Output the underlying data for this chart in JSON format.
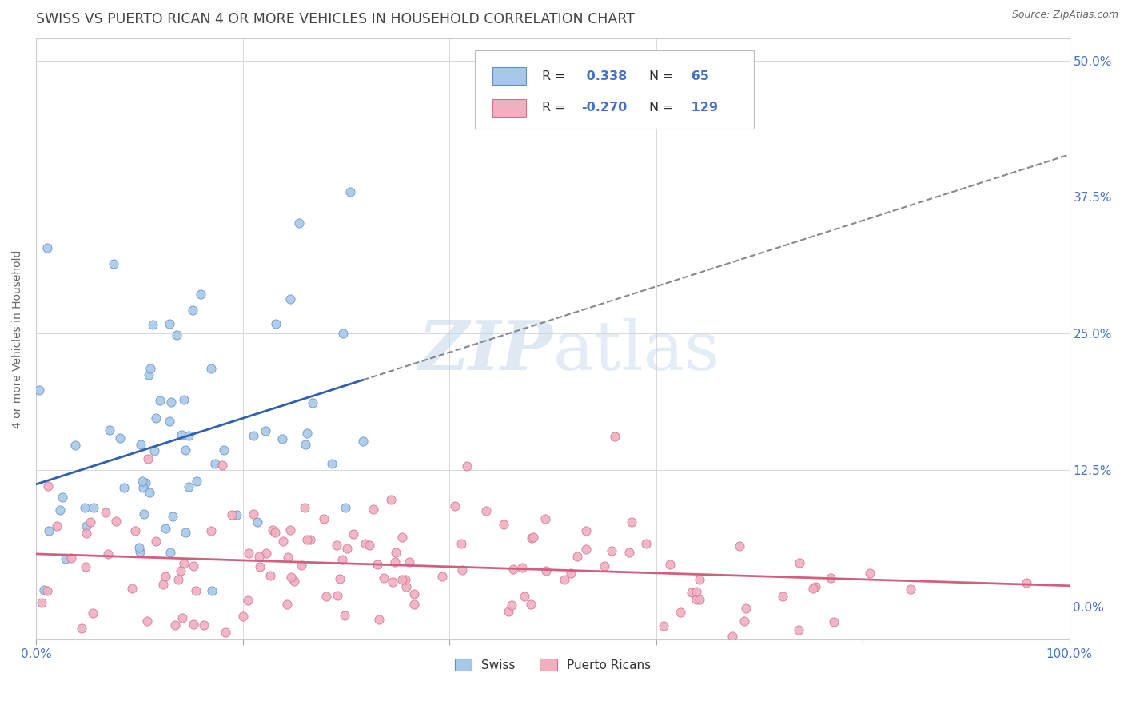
{
  "title": "SWISS VS PUERTO RICAN 4 OR MORE VEHICLES IN HOUSEHOLD CORRELATION CHART",
  "source": "Source: ZipAtlas.com",
  "ylabel": "4 or more Vehicles in Household",
  "swiss_R": 0.338,
  "swiss_N": 65,
  "pr_R": -0.27,
  "pr_N": 129,
  "xlim": [
    0.0,
    100.0
  ],
  "ylim": [
    -3.0,
    52.0
  ],
  "yticks": [
    0,
    12.5,
    25.0,
    37.5,
    50.0
  ],
  "xticks": [
    0,
    20,
    40,
    60,
    80,
    100
  ],
  "xtick_labels": [
    "0.0%",
    "",
    "",
    "",
    "",
    "100.0%"
  ],
  "ytick_labels": [
    "0.0%",
    "12.5%",
    "25.0%",
    "37.5%",
    "50.0%"
  ],
  "swiss_color": "#a8c8e8",
  "swiss_edge_color": "#6090c8",
  "swiss_line_color": "#3060b0",
  "pr_color": "#f0b0c0",
  "pr_edge_color": "#d07090",
  "pr_line_color": "#d06080",
  "watermark_color": "#c5d8ea",
  "background_color": "#ffffff",
  "grid_color": "#d8d8d8",
  "title_color": "#444444",
  "axis_label_color": "#4472c4",
  "legend_text_color": "#333333"
}
